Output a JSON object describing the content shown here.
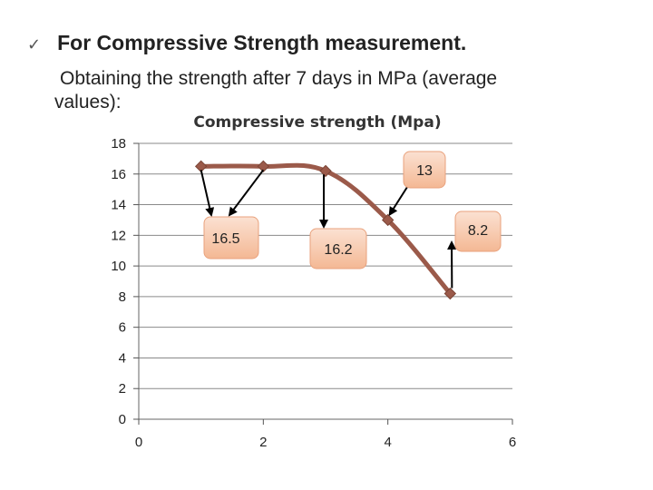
{
  "slide": {
    "bullet": "For Compressive Strength measurement.",
    "bullet_icon": "check-mark-icon",
    "subtext_line1": "Obtaining the strength after 7 days in MPa (average",
    "subtext_line2": "values):"
  },
  "chart_data": {
    "type": "line",
    "title": "Compressive strength (Mpa)",
    "xlabel": "",
    "ylabel": "",
    "xlim": [
      0,
      6
    ],
    "ylim": [
      0,
      18
    ],
    "x_ticks": [
      0,
      2,
      4,
      6
    ],
    "y_ticks": [
      0,
      2,
      4,
      6,
      8,
      10,
      12,
      14,
      16,
      18
    ],
    "grid": "horizontal",
    "series": [
      {
        "color": "#9b5a4a",
        "marker": "diamond",
        "smooth": true,
        "points": [
          {
            "x": 1,
            "y": 16.5
          },
          {
            "x": 2,
            "y": 16.5
          },
          {
            "x": 3,
            "y": 16.2
          },
          {
            "x": 4,
            "y": 13
          },
          {
            "x": 5,
            "y": 8.2
          }
        ]
      }
    ],
    "annotations": [
      {
        "text": "13",
        "box_color": "#f7c9ad",
        "targets": [
          3
        ]
      },
      {
        "text": "16.5",
        "box_color": "#f7c9ad",
        "targets": [
          0,
          1
        ]
      },
      {
        "text": "16.2",
        "box_color": "#f7c9ad",
        "targets": [
          2
        ]
      },
      {
        "text": "8.2",
        "box_color": "#f7c9ad",
        "targets": [
          4
        ]
      }
    ]
  }
}
